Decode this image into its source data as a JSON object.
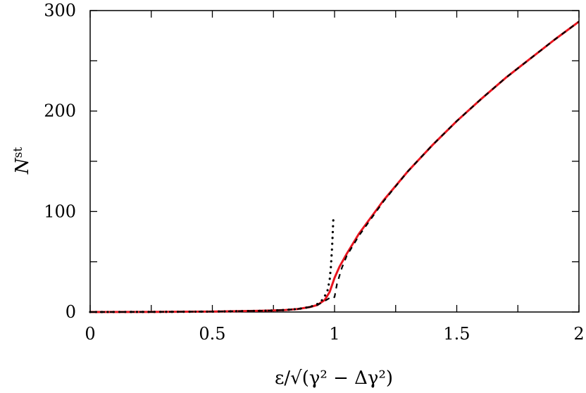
{
  "chart_data": {
    "type": "line",
    "title": "",
    "xlabel": "ε/√(γ² − Δγ²)",
    "ylabel": "N^st",
    "xlim": [
      0,
      2
    ],
    "ylim": [
      0,
      300
    ],
    "x_ticks": [
      0,
      0.5,
      1,
      1.5,
      2
    ],
    "x_tick_labels": [
      "0",
      "0.5",
      "1",
      "1.5",
      "2"
    ],
    "y_ticks": [
      0,
      100,
      200,
      300
    ],
    "y_tick_labels": [
      "0",
      "100",
      "200",
      "300"
    ],
    "grid": false,
    "legend": "none",
    "series": [
      {
        "style": "solid",
        "color": "#e8141e",
        "x": [
          0,
          0.25,
          0.5,
          0.7,
          0.8,
          0.85,
          0.9,
          0.93,
          0.96,
          0.98,
          1.0,
          1.02,
          1.05,
          1.1,
          1.2,
          1.3,
          1.4,
          1.5,
          1.6,
          1.7,
          1.8,
          1.9,
          2.0
        ],
        "y": [
          0,
          0.1,
          0.4,
          1.2,
          2,
          3,
          5,
          7,
          12,
          20,
          34,
          45,
          58,
          78,
          111,
          140,
          166,
          190,
          212,
          233,
          252,
          271,
          289
        ]
      },
      {
        "style": "dashed",
        "color": "#000000",
        "x": [
          0,
          0.25,
          0.5,
          0.7,
          0.8,
          0.85,
          0.9,
          0.93,
          0.96,
          0.98,
          0.99,
          1.0,
          1.01,
          1.03,
          1.05,
          1.1,
          1.2,
          1.3,
          1.4,
          1.5,
          1.6,
          1.7,
          1.8,
          1.9,
          2.0
        ],
        "y": [
          0,
          0.1,
          0.4,
          1.2,
          2,
          3,
          5,
          7,
          11,
          14,
          13,
          15,
          28,
          44,
          56,
          76,
          110,
          140,
          166,
          190,
          212,
          233,
          252,
          271,
          289
        ]
      },
      {
        "style": "dotted",
        "color": "#000000",
        "x": [
          0,
          0.25,
          0.5,
          0.7,
          0.8,
          0.85,
          0.9,
          0.93,
          0.95,
          0.97,
          0.98,
          0.985,
          0.99,
          0.995
        ],
        "y": [
          0,
          0.1,
          0.4,
          1.2,
          2,
          3,
          5,
          8,
          12,
          20,
          32,
          45,
          65,
          92
        ]
      }
    ],
    "colors": {
      "red_series": "#e8141e",
      "black_series": "#000000",
      "axes": "#000000"
    }
  }
}
